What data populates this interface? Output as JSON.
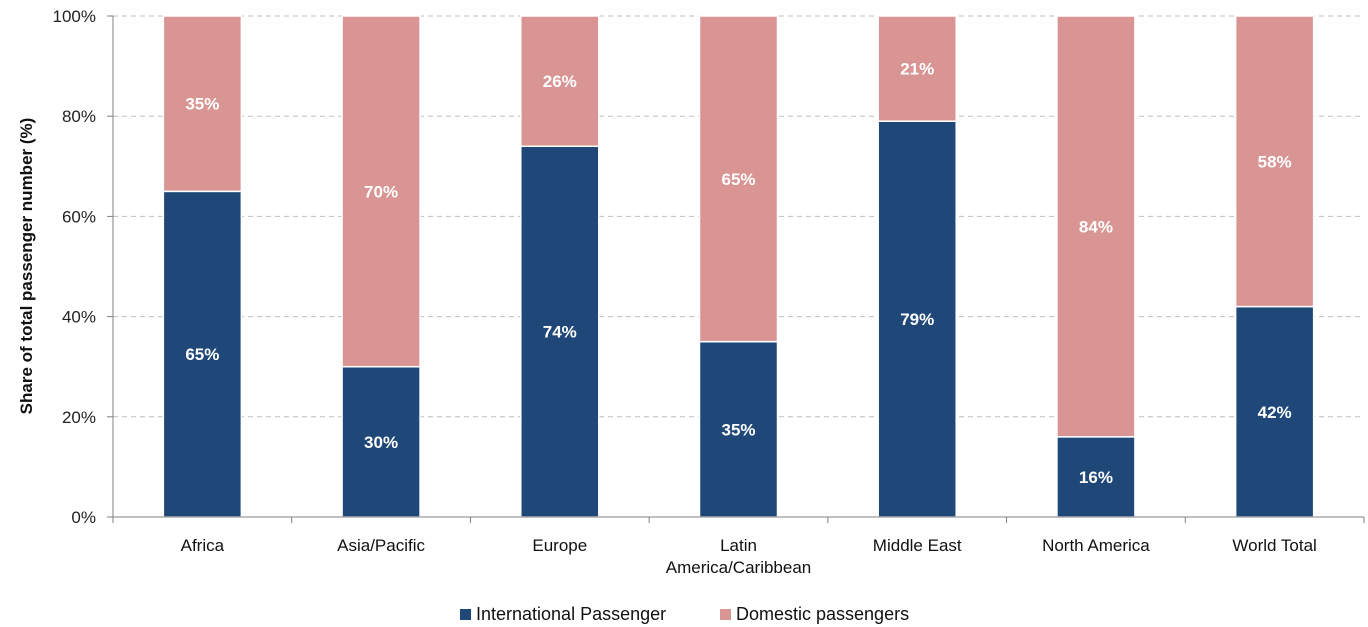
{
  "chart_data": {
    "type": "bar",
    "stacked": true,
    "categories": [
      "Africa",
      "Asia/Pacific",
      "Europe",
      "Latin America/Caribbean",
      "Middle East",
      "North America",
      "World Total"
    ],
    "category_lines": [
      [
        "Africa"
      ],
      [
        "Asia/Pacific"
      ],
      [
        "Europe"
      ],
      [
        "Latin",
        "America/Caribbean"
      ],
      [
        "Middle East"
      ],
      [
        "North America"
      ],
      [
        "World Total"
      ]
    ],
    "series": [
      {
        "name": "International Passenger",
        "values": [
          65,
          30,
          74,
          35,
          79,
          16,
          42
        ],
        "labels": [
          "65%",
          "30%",
          "74%",
          "35%",
          "79%",
          "16%",
          "42%"
        ],
        "color": "#1f4778"
      },
      {
        "name": "Domestic passengers",
        "values": [
          35,
          70,
          26,
          65,
          21,
          84,
          58
        ],
        "labels": [
          "35%",
          "70%",
          "26%",
          "65%",
          "21%",
          "84%",
          "58%"
        ],
        "color": "#d99594"
      }
    ],
    "ylabel": "Share of total passenger number (%)",
    "ylim": [
      0,
      100
    ],
    "yticks": [
      0,
      20,
      40,
      60,
      80,
      100
    ],
    "ytick_labels": [
      "0%",
      "20%",
      "40%",
      "60%",
      "80%",
      "100%"
    ],
    "grid": "dashed horizontal",
    "legend": "bottom-center"
  }
}
